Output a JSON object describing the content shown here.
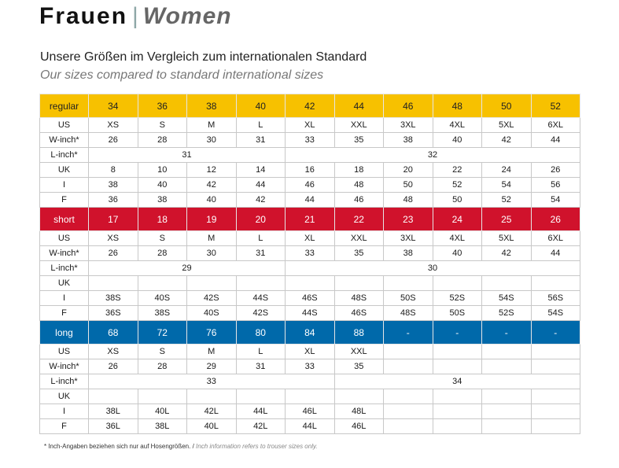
{
  "header": {
    "title_de": "Frauen",
    "separator": "|",
    "title_en": "Women"
  },
  "subtitle": {
    "de": "Unsere Größen im Vergleich zum internationalen Standard",
    "en": "Our sizes compared to standard international sizes"
  },
  "colors": {
    "regular": "#f7c100",
    "short": "#d0122c",
    "long": "#0069aa"
  },
  "sections": [
    {
      "name": "regular",
      "sizes": [
        "34",
        "36",
        "38",
        "40",
        "42",
        "44",
        "46",
        "48",
        "50",
        "52"
      ],
      "us": [
        "XS",
        "S",
        "M",
        "L",
        "XL",
        "XXL",
        "3XL",
        "4XL",
        "5XL",
        "6XL"
      ],
      "w_inch": [
        "26",
        "28",
        "30",
        "31",
        "33",
        "35",
        "38",
        "40",
        "42",
        "44"
      ],
      "l_inch": [
        "31",
        "32"
      ],
      "uk": [
        "8",
        "10",
        "12",
        "14",
        "16",
        "18",
        "20",
        "22",
        "24",
        "26"
      ],
      "i": [
        "38",
        "40",
        "42",
        "44",
        "46",
        "48",
        "50",
        "52",
        "54",
        "56"
      ],
      "f": [
        "36",
        "38",
        "40",
        "42",
        "44",
        "46",
        "48",
        "50",
        "52",
        "54"
      ]
    },
    {
      "name": "short",
      "sizes": [
        "17",
        "18",
        "19",
        "20",
        "21",
        "22",
        "23",
        "24",
        "25",
        "26"
      ],
      "us": [
        "XS",
        "S",
        "M",
        "L",
        "XL",
        "XXL",
        "3XL",
        "4XL",
        "5XL",
        "6XL"
      ],
      "w_inch": [
        "26",
        "28",
        "30",
        "31",
        "33",
        "35",
        "38",
        "40",
        "42",
        "44"
      ],
      "l_inch": [
        "29",
        "30"
      ],
      "uk": [
        "",
        "",
        "",
        "",
        "",
        "",
        "",
        "",
        "",
        ""
      ],
      "i": [
        "38S",
        "40S",
        "42S",
        "44S",
        "46S",
        "48S",
        "50S",
        "52S",
        "54S",
        "56S"
      ],
      "f": [
        "36S",
        "38S",
        "40S",
        "42S",
        "44S",
        "46S",
        "48S",
        "50S",
        "52S",
        "54S"
      ]
    },
    {
      "name": "long",
      "sizes": [
        "68",
        "72",
        "76",
        "80",
        "84",
        "88",
        "-",
        "-",
        "-",
        "-"
      ],
      "us": [
        "XS",
        "S",
        "M",
        "L",
        "XL",
        "XXL",
        "",
        "",
        "",
        ""
      ],
      "w_inch": [
        "26",
        "28",
        "29",
        "31",
        "33",
        "35",
        "",
        "",
        "",
        ""
      ],
      "l_inch": [
        "33",
        "34"
      ],
      "uk": [
        "",
        "",
        "",
        "",
        "",
        "",
        "",
        "",
        "",
        ""
      ],
      "i": [
        "38L",
        "40L",
        "42L",
        "44L",
        "46L",
        "48L",
        "",
        "",
        "",
        ""
      ],
      "f": [
        "36L",
        "38L",
        "40L",
        "42L",
        "44L",
        "46L",
        "",
        "",
        "",
        ""
      ]
    }
  ],
  "row_labels": {
    "us": "US",
    "w_inch": "W-inch*",
    "l_inch": "L-inch*",
    "uk": "UK",
    "i": "I",
    "f": "F"
  },
  "footnote": {
    "de": "*  Inch-Angaben beziehen sich nur auf Hosengrößen. /",
    "en": "Inch information refers to trouser sizes only."
  }
}
